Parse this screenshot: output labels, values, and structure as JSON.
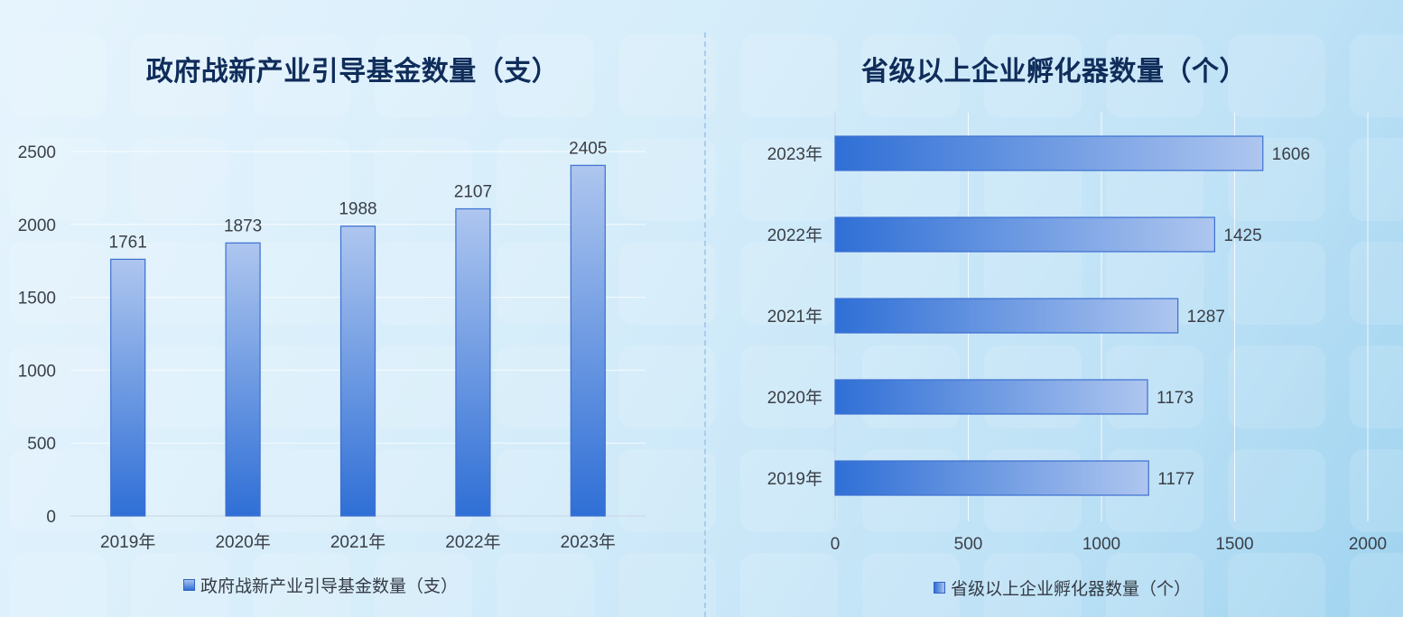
{
  "colors": {
    "title": "#0f2c5a",
    "bar_dark": "#2f6fd6",
    "bar_light": "#a9c3ee",
    "bar_border": "#3c6fd0",
    "grid": "#ffffff",
    "text": "#3a3f47"
  },
  "chart_data": [
    {
      "type": "bar",
      "orientation": "vertical",
      "title": "政府战新产业引导基金数量（支）",
      "categories": [
        "2019年",
        "2020年",
        "2021年",
        "2022年",
        "2023年"
      ],
      "series": [
        {
          "name": "政府战新产业引导基金数量（支）",
          "values": [
            1761,
            1873,
            1988,
            2107,
            2405
          ]
        }
      ],
      "yticks": [
        "0",
        "500",
        "1000",
        "1500",
        "2000",
        "2500"
      ],
      "ylim": [
        0,
        2500
      ],
      "grid": true,
      "legend": "bottom",
      "xlabel": "",
      "ylabel": ""
    },
    {
      "type": "bar",
      "orientation": "horizontal",
      "title": "省级以上企业孵化器数量（个）",
      "categories": [
        "2019年",
        "2020年",
        "2021年",
        "2022年",
        "2023年"
      ],
      "series": [
        {
          "name": "省级以上企业孵化器数量（个）",
          "values": [
            1177,
            1173,
            1287,
            1425,
            1606
          ]
        }
      ],
      "xticks": [
        "0",
        "500",
        "1000",
        "1500",
        "2000"
      ],
      "xlim": [
        0,
        2000
      ],
      "grid": true,
      "legend": "bottom",
      "xlabel": "",
      "ylabel": ""
    }
  ]
}
